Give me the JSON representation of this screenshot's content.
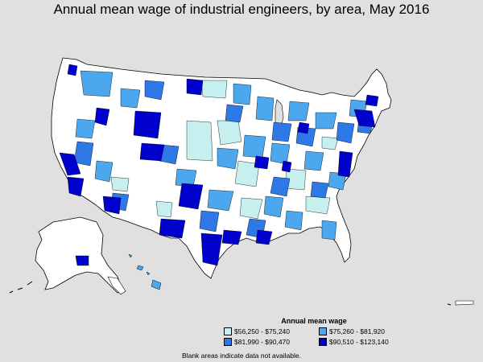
{
  "title": "Annual mean wage of industrial engineers, by area, May 2016",
  "legend": {
    "title": "Annual mean wage",
    "items": [
      {
        "label": "$56,250 - $75,240",
        "color": "#c6f0ef"
      },
      {
        "label": "$75,260 - $81,920",
        "color": "#4ba7ee"
      },
      {
        "label": "$81,990 - $90,470",
        "color": "#2f78e8"
      },
      {
        "label": "$90,510 - $123,140",
        "color": "#0000cc"
      }
    ]
  },
  "note": "Blank areas indicate data not available.",
  "colors": {
    "background": "#e0e0e0",
    "no_data": "#ffffff",
    "border": "#000000"
  }
}
